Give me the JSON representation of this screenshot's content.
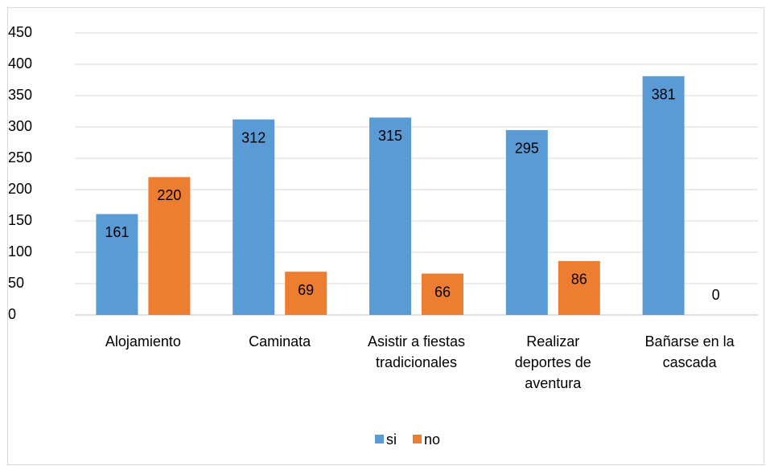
{
  "chart_data": {
    "type": "bar",
    "categories": [
      "Alojamiento",
      "Caminata",
      "Asistir a fiestas tradicionales",
      "Realizar deportes de aventura",
      "Bañarse en la cascada"
    ],
    "series": [
      {
        "name": "si",
        "color": "#5b9bd5",
        "values": [
          161,
          312,
          315,
          295,
          381
        ]
      },
      {
        "name": "no",
        "color": "#ed7d31",
        "values": [
          220,
          69,
          66,
          86,
          0
        ]
      }
    ],
    "ylim": [
      0,
      450
    ],
    "yticks": [
      0,
      50,
      100,
      150,
      200,
      250,
      300,
      350,
      400,
      450
    ],
    "grid": true,
    "legend": "bottom"
  }
}
